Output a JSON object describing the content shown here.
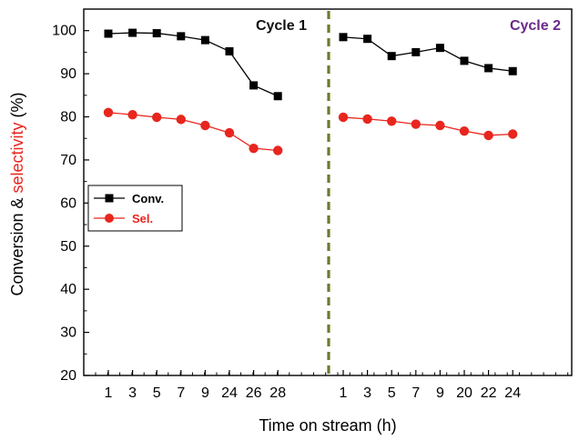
{
  "chart_data": {
    "type": "line",
    "xlabel": "Time on stream (h)",
    "ylabel": {
      "prefix": "Conversion & ",
      "highlight": "selectivity",
      "suffix": " (%)",
      "highlight_color": "#e8261e"
    },
    "ylim": [
      20,
      105
    ],
    "yticks": [
      "20",
      "30",
      "40",
      "50",
      "60",
      "70",
      "80",
      "90",
      "100"
    ],
    "grid": false,
    "legend_position": "middle-left",
    "divider_color": "#6b7a2e",
    "cycles": [
      {
        "label": "Cycle 1",
        "label_color": "#111111",
        "categories": [
          "1",
          "3",
          "5",
          "7",
          "9",
          "24",
          "26",
          "28"
        ]
      },
      {
        "label": "Cycle 2",
        "label_color": "#6a2a8a",
        "categories": [
          "1",
          "3",
          "5",
          "7",
          "9",
          "20",
          "22",
          "24"
        ]
      }
    ],
    "series": [
      {
        "name": "Conv.",
        "color": "#000000",
        "marker": "square",
        "cycle1": [
          99.3,
          99.5,
          99.4,
          98.7,
          97.8,
          95.2,
          87.3,
          84.8
        ],
        "cycle2": [
          98.5,
          98.1,
          94.1,
          95.0,
          96.0,
          93.0,
          91.3,
          90.6
        ]
      },
      {
        "name": "Sel.",
        "color": "#e8261e",
        "marker": "circle",
        "cycle1": [
          81.0,
          80.5,
          79.9,
          79.4,
          78.0,
          76.3,
          72.7,
          72.2
        ],
        "cycle2": [
          79.9,
          79.5,
          79.0,
          78.3,
          78.0,
          76.7,
          75.7,
          76.0
        ]
      }
    ]
  }
}
